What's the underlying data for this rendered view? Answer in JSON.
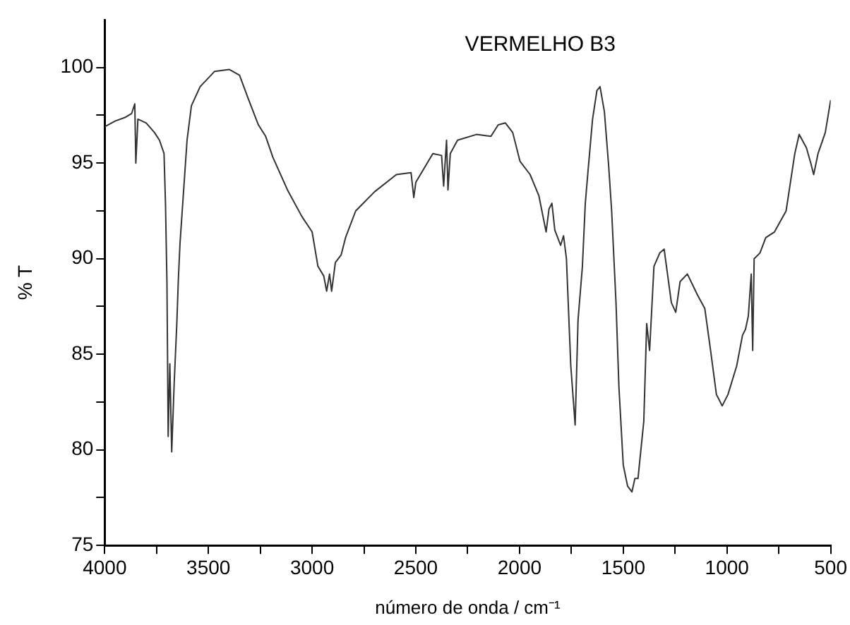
{
  "chart_data": {
    "type": "line",
    "title": "VERMELHO B3",
    "xlabel": "número de onda / cm⁻¹",
    "ylabel": "% T",
    "xlim": [
      4000,
      500
    ],
    "ylim": [
      75,
      102.5
    ],
    "xticks": [
      4000,
      {
        "value": 3750,
        "label": null
      },
      3500,
      {
        "value": 3250,
        "label": null
      },
      3000,
      {
        "value": 2750,
        "label": null
      },
      2500,
      {
        "value": 2250,
        "label": null
      },
      2000,
      {
        "value": 1750,
        "label": null
      },
      1500,
      {
        "value": 1250,
        "label": null
      },
      1000,
      {
        "value": 750,
        "label": null
      },
      500
    ],
    "yticks": [
      75,
      {
        "value": 77.5,
        "label": null
      },
      80,
      {
        "value": 82.5,
        "label": null
      },
      85,
      {
        "value": 87.5,
        "label": null
      },
      90,
      {
        "value": 92.5,
        "label": null
      },
      95,
      {
        "value": 97.5,
        "label": null
      },
      100
    ],
    "grid": false,
    "legend": false,
    "marker": "none",
    "line_style": "solid",
    "series": [
      {
        "color": "#333333",
        "x": [
          4000,
          3950,
          3900,
          3870,
          3855,
          3850,
          3840,
          3800,
          3760,
          3736,
          3714,
          3707,
          3700,
          3694,
          3686,
          3677,
          3665,
          3652,
          3645,
          3637,
          3603,
          3582,
          3540,
          3470,
          3400,
          3350,
          3309,
          3259,
          3224,
          3189,
          3119,
          3049,
          3000,
          2972,
          2944,
          2930,
          2916,
          2906,
          2888,
          2860,
          2839,
          2790,
          2699,
          2594,
          2523,
          2510,
          2500,
          2418,
          2376,
          2366,
          2352,
          2345,
          2334,
          2299,
          2208,
          2138,
          2103,
          2068,
          2033,
          1998,
          1949,
          1907,
          1872,
          1858,
          1844,
          1830,
          1802,
          1788,
          1774,
          1753,
          1732,
          1718,
          1697,
          1683,
          1669,
          1648,
          1627,
          1612,
          1591,
          1570,
          1556,
          1535,
          1521,
          1500,
          1479,
          1458,
          1444,
          1429,
          1401,
          1387,
          1373,
          1352,
          1324,
          1303,
          1268,
          1247,
          1226,
          1191,
          1142,
          1107,
          1079,
          1051,
          1023,
          995,
          953,
          939,
          925,
          911,
          897,
          883,
          876,
          869,
          841,
          813,
          771,
          715,
          673,
          652,
          617,
          596,
          582,
          561,
          526,
          500
        ],
        "values": [
          96.9,
          97.2,
          97.4,
          97.6,
          98.1,
          95.0,
          97.3,
          97.1,
          96.6,
          96.2,
          95.5,
          92.9,
          88.8,
          80.7,
          84.5,
          79.9,
          83.5,
          86.7,
          88.9,
          90.8,
          96.2,
          98.0,
          99.0,
          99.8,
          99.9,
          99.6,
          98.4,
          97.0,
          96.4,
          95.3,
          93.6,
          92.2,
          91.4,
          89.6,
          89.1,
          88.3,
          89.2,
          88.3,
          89.8,
          90.2,
          91.1,
          92.5,
          93.5,
          94.4,
          94.5,
          93.2,
          94.0,
          95.5,
          95.4,
          93.8,
          96.2,
          93.6,
          95.5,
          96.2,
          96.5,
          96.4,
          97.0,
          97.1,
          96.6,
          95.1,
          94.4,
          93.3,
          91.4,
          92.6,
          92.9,
          91.5,
          90.7,
          91.2,
          90.0,
          84.4,
          81.3,
          86.8,
          89.6,
          92.9,
          94.7,
          97.3,
          98.8,
          99.0,
          97.7,
          94.8,
          92.5,
          87.7,
          83.3,
          79.2,
          78.1,
          77.8,
          78.5,
          78.5,
          81.5,
          86.6,
          85.2,
          89.6,
          90.3,
          90.5,
          87.7,
          87.2,
          88.8,
          89.2,
          88.1,
          87.4,
          85.2,
          82.9,
          82.3,
          82.9,
          84.4,
          85.2,
          86.0,
          86.3,
          87.0,
          89.2,
          85.2,
          90.0,
          90.3,
          91.1,
          91.4,
          92.5,
          95.5,
          96.5,
          95.8,
          95.0,
          94.4,
          95.5,
          96.6,
          98.3
        ]
      }
    ]
  }
}
